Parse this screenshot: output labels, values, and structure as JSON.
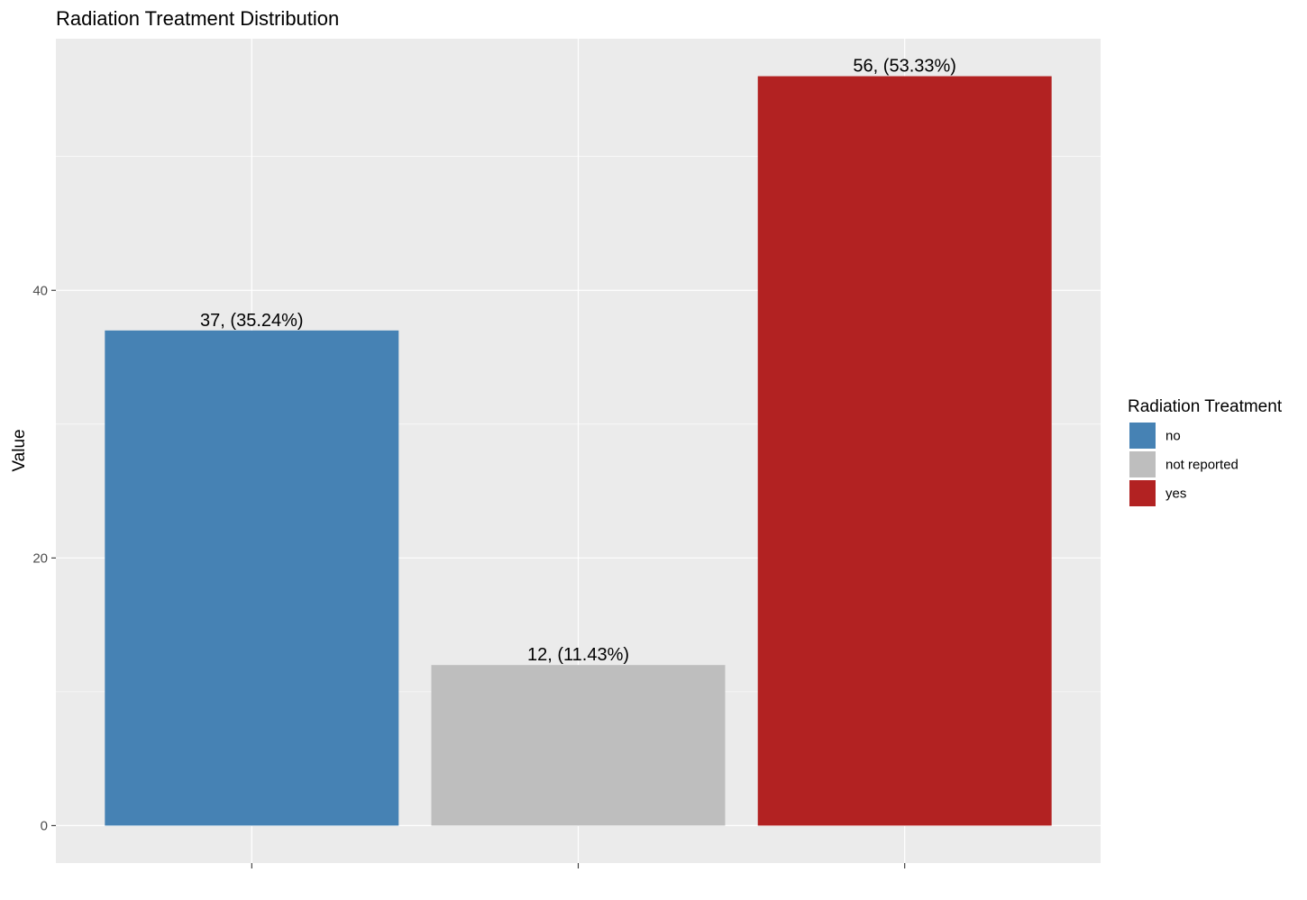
{
  "chart_data": {
    "type": "bar",
    "title": "Radiation Treatment Distribution",
    "xlabel": "",
    "ylabel": "Value",
    "categories": [
      "no",
      "not reported",
      "yes"
    ],
    "values": [
      37,
      12,
      56
    ],
    "data_labels": [
      "37, (35.24%)",
      "12, (11.43%)",
      "56, (53.33%)"
    ],
    "colors": [
      "#4682b4",
      "#bebebe",
      "#b22222"
    ],
    "ylim": [
      -2.8,
      58.8
    ],
    "yticks": [
      0,
      20,
      40
    ],
    "ytick_labels": [
      "0",
      "20",
      "40"
    ],
    "grid": true,
    "panel_background": "#ebebeb",
    "legend": {
      "title": "Radiation Treatment",
      "position": "right",
      "entries": [
        "no",
        "not reported",
        "yes"
      ]
    }
  }
}
